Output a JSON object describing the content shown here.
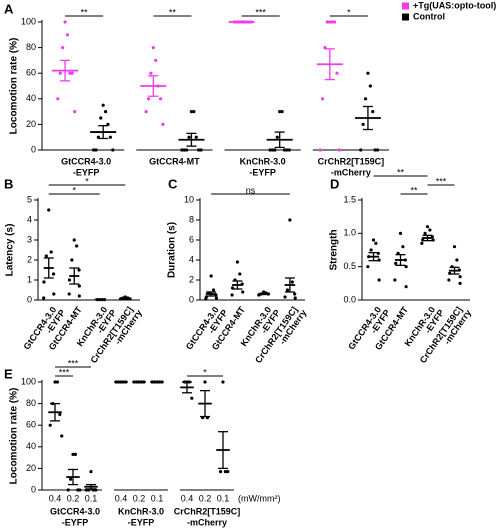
{
  "chart_data": [
    {
      "type": "dotplot",
      "panel": "A",
      "ylabel": "Locomotion rate (%)",
      "ylim": [
        0,
        100
      ],
      "yticks": [
        0,
        20,
        40,
        60,
        80,
        100
      ],
      "broken_x_axis": true,
      "legend": "top-right",
      "categories": [
        [
          "GtCCR4-3.0",
          "-EYFP"
        ],
        [
          "GtCCR4-MT"
        ],
        [
          "KnChR-3.0",
          "-EYFP"
        ],
        [
          "CrChR2[T159C]",
          "-mCherry"
        ]
      ],
      "series": [
        {
          "name": "+Tg(UAS:opto-tool)",
          "color": "#ee3cee",
          "means": [
            62,
            50,
            100,
            67
          ],
          "sems": [
            8,
            8,
            0,
            12
          ],
          "points": [
            [
              100,
              90,
              80,
              60,
              60,
              60,
              40,
              30
            ],
            [
              80,
              70,
              60,
              50,
              40,
              40,
              30,
              20
            ],
            [
              100,
              100,
              100,
              100,
              100,
              100,
              100,
              100
            ],
            [
              100,
              100,
              100,
              100,
              80,
              60,
              40,
              0,
              0
            ]
          ]
        },
        {
          "name": "Control",
          "color": "#000000",
          "means": [
            14,
            8,
            8,
            25
          ],
          "sems": [
            5,
            5,
            6,
            9
          ],
          "points": [
            [
              35,
              30,
              25,
              20,
              10,
              10,
              0,
              0,
              0
            ],
            [
              30,
              30,
              10,
              10,
              0,
              0,
              0,
              0,
              0
            ],
            [
              30,
              30,
              10,
              0,
              0,
              0,
              0,
              0,
              0
            ],
            [
              60,
              50,
              40,
              30,
              20,
              0,
              0,
              0
            ]
          ]
        }
      ],
      "significance": [
        {
          "label": "**",
          "from": [
            0,
            0
          ],
          "to": [
            0,
            1
          ]
        },
        {
          "label": "**",
          "from": [
            1,
            0
          ],
          "to": [
            1,
            1
          ]
        },
        {
          "label": "***",
          "from": [
            2,
            0
          ],
          "to": [
            2,
            1
          ]
        },
        {
          "label": "*",
          "from": [
            3,
            0
          ],
          "to": [
            3,
            1
          ]
        }
      ]
    },
    {
      "type": "dotplot",
      "panel": "B",
      "ylabel": "Latency (s)",
      "ylim": [
        0,
        5
      ],
      "yticks": [
        0,
        1,
        2,
        3,
        4,
        5
      ],
      "broken_x_axis": false,
      "categories": [
        [
          "GtCCR4-3.0",
          "-EYFP"
        ],
        [
          "GtCCR4-MT"
        ],
        [
          "KnChR-3.0",
          "-EYFP"
        ],
        [
          "CrChR2[T159C]",
          "-mCherry"
        ]
      ],
      "series": [
        {
          "color": "#000000",
          "means": [
            1.6,
            1.2,
            0.02,
            0.08
          ],
          "sems": [
            0.5,
            0.4,
            0,
            0.03
          ],
          "points": [
            [
              4.5,
              2.4,
              2.2,
              1.3,
              0.9,
              0.3,
              0.1
            ],
            [
              3.0,
              2.7,
              2.0,
              1.5,
              1.0,
              0.7,
              0.3,
              0.2
            ],
            [
              0.02,
              0.02,
              0.02,
              0.02
            ],
            [
              0.15,
              0.1,
              0.1,
              0.05,
              0.05
            ]
          ]
        }
      ],
      "significance": [
        {
          "label": "*",
          "from": [
            0,
            0
          ],
          "to": [
            2,
            0
          ]
        },
        {
          "label": "*",
          "from": [
            0,
            0
          ],
          "to": [
            3,
            0
          ]
        }
      ]
    },
    {
      "type": "dotplot",
      "panel": "C",
      "ylabel": "Duration (s)",
      "ylim": [
        0,
        10
      ],
      "yticks": [
        0,
        2,
        4,
        6,
        8,
        10
      ],
      "broken_x_axis": false,
      "categories": [
        [
          "GtCCR4-3.0",
          "-EYFP"
        ],
        [
          "GtCCR4-MT"
        ],
        [
          "KnChR-3.0",
          "-EYFP"
        ],
        [
          "CrChR2[T159C]",
          "-mCherry"
        ]
      ],
      "series": [
        {
          "color": "#000000",
          "means": [
            0.6,
            1.5,
            0.6,
            1.5
          ],
          "sems": [
            0.2,
            0.4,
            0.05,
            0.7
          ],
          "points": [
            [
              2.4,
              1.0,
              0.7,
              0.5,
              0.3,
              0.2,
              0.1
            ],
            [
              3.8,
              2.6,
              2.0,
              1.6,
              1.2,
              0.8,
              0.5
            ],
            [
              0.8,
              0.7,
              0.6,
              0.6,
              0.5
            ],
            [
              8.0,
              1.8,
              1.0,
              0.6,
              0.3,
              0.2
            ]
          ]
        }
      ],
      "significance": [
        {
          "label": "ns",
          "from": [
            0,
            0
          ],
          "to": [
            3,
            0
          ]
        }
      ]
    },
    {
      "type": "dotplot",
      "panel": "D",
      "ylabel": "Strength",
      "ylim": [
        0,
        1.5
      ],
      "yticks": [
        {
          "value": 0,
          "label": "0.0"
        },
        0.5,
        {
          "value": 1,
          "label": "1.0"
        },
        1.5
      ],
      "broken_x_axis": false,
      "categories": [
        [
          "GtCCR4-3.0",
          "-EYFP"
        ],
        [
          "GtCCR4-MT"
        ],
        [
          "KnChR-3.0",
          "-EYFP"
        ],
        [
          "CrChR2[T159C]",
          "-mCherry"
        ]
      ],
      "series": [
        {
          "color": "#000000",
          "means": [
            0.65,
            0.6,
            0.93,
            0.44
          ],
          "sems": [
            0.06,
            0.08,
            0.04,
            0.05
          ],
          "points": [
            [
              0.9,
              0.85,
              0.75,
              0.7,
              0.65,
              0.6,
              0.5,
              0.3
            ],
            [
              1.0,
              0.8,
              0.7,
              0.6,
              0.55,
              0.5,
              0.3,
              0.2
            ],
            [
              1.1,
              1.05,
              1.0,
              0.95,
              0.9,
              0.9,
              0.85
            ],
            [
              0.8,
              0.6,
              0.5,
              0.45,
              0.4,
              0.35,
              0.3,
              0.25
            ]
          ]
        }
      ],
      "significance": [
        {
          "label": "**",
          "from": [
            1,
            0
          ],
          "to": [
            2,
            0
          ]
        },
        {
          "label": "***",
          "from": [
            2,
            0
          ],
          "to": [
            3,
            0
          ]
        },
        {
          "label": "**",
          "from": [
            0,
            0
          ],
          "to": [
            2,
            0
          ]
        }
      ]
    },
    {
      "type": "dotplot",
      "panel": "E",
      "ylabel": "Locomotion rate (%)",
      "ylim": [
        0,
        100
      ],
      "yticks": [
        0,
        20,
        40,
        60,
        80,
        100
      ],
      "broken_x_axis": true,
      "categories": [
        [
          "GtCCR4-3.0",
          "-EYFP"
        ],
        [
          "KnChR-3.0",
          "-EYFP"
        ],
        [
          "CrChR2[T159C]",
          "-mCherry"
        ]
      ],
      "subcategories": [
        0.4,
        0.2,
        0.1
      ],
      "x_unit": "(mW/mm²)",
      "series": [
        {
          "color": "#000000",
          "means": [
            72,
            100,
            95
          ],
          "sems": [
            8,
            0,
            5
          ],
          "points": [
            [
              100,
              100,
              80,
              70,
              60,
              50
            ],
            [
              100,
              100,
              100,
              100,
              100
            ],
            [
              100,
              100,
              100,
              85
            ]
          ]
        },
        {
          "color": "#000000",
          "means": [
            12,
            100,
            80
          ],
          "sems": [
            7,
            0,
            12
          ],
          "points": [
            [
              33,
              33,
              10,
              0,
              0,
              0
            ],
            [
              100,
              100,
              100,
              100,
              100
            ],
            [
              100,
              67,
              67
            ]
          ]
        },
        {
          "color": "#000000",
          "means": [
            3,
            100,
            37
          ],
          "sems": [
            2,
            0,
            17
          ],
          "points": [
            [
              17,
              0,
              0,
              0,
              0
            ],
            [
              100,
              100,
              100,
              100,
              100
            ],
            [
              100,
              17,
              17,
              17
            ]
          ]
        }
      ],
      "significance": [
        {
          "label": "***",
          "from": [
            0,
            0
          ],
          "to": [
            0,
            1
          ]
        },
        {
          "label": "***",
          "from": [
            0,
            0
          ],
          "to": [
            0,
            2
          ]
        },
        {
          "label": "*",
          "from": [
            2,
            0
          ],
          "to": [
            2,
            2
          ]
        }
      ]
    }
  ]
}
